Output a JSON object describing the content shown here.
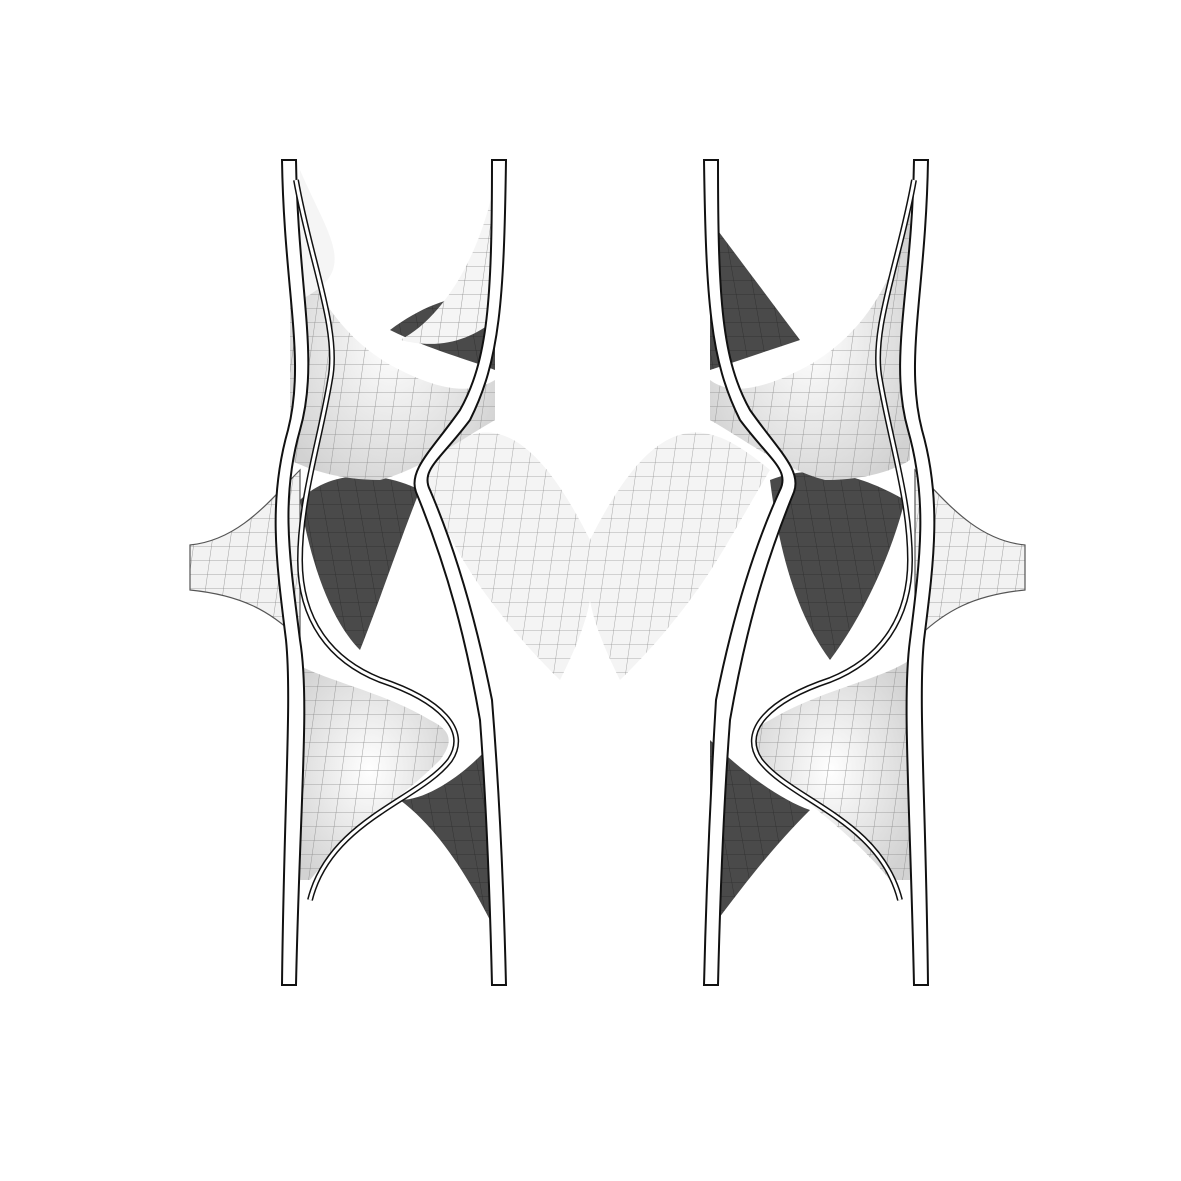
{
  "figure": {
    "kind": "periodic minimal surface architectural render",
    "colors": {
      "background": "#ffffff",
      "surface_light": "#f4f4f4",
      "surface_mid": "#bdbdbd",
      "surface_dark": "#4a4a4a",
      "mesh_line": "#8a8a8a",
      "edge_stroke": "#111111"
    },
    "columns": 4,
    "mesh": "quad"
  }
}
